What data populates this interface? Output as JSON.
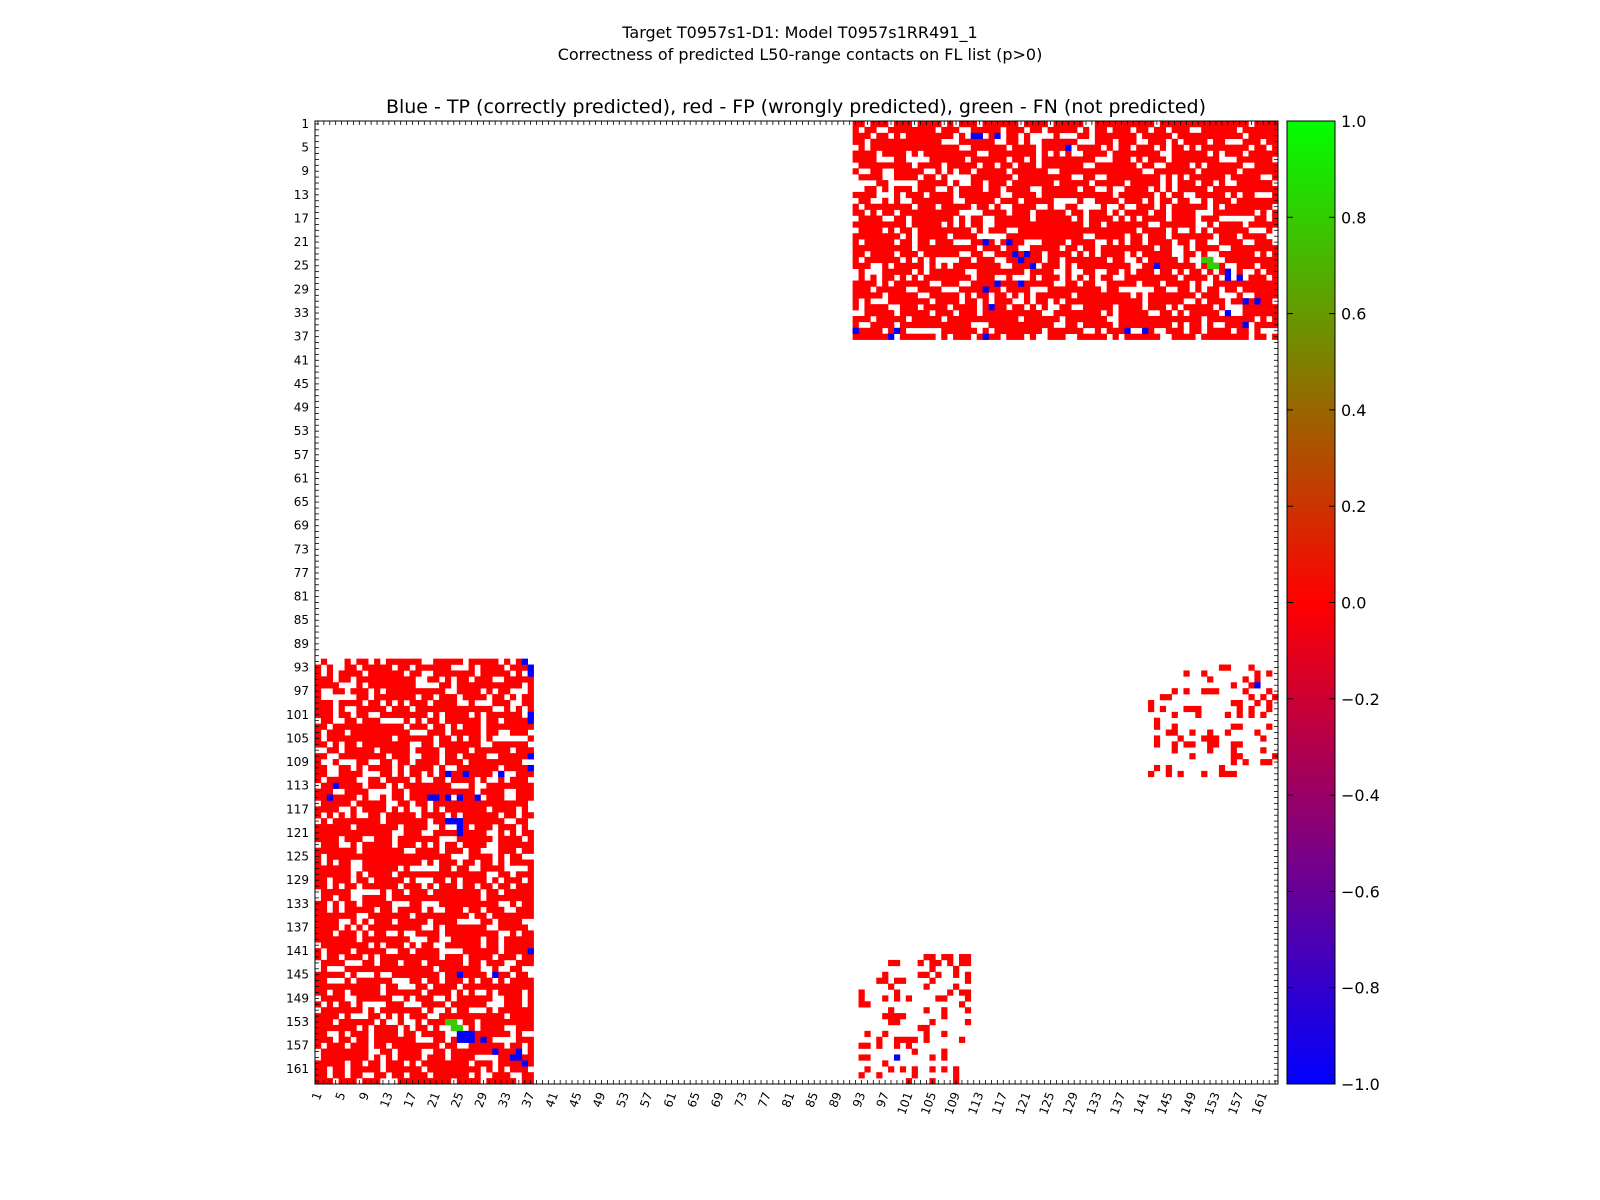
{
  "page": {
    "title_line1": "Target T0957s1-D1: Model T0957s1RR491_1",
    "title_line2": "Correctness of predicted L50-range contacts on FL list (p>0)"
  },
  "chart_data": {
    "type": "heatmap",
    "title": "Blue - TP (correctly predicted), red - FP (wrongly predicted), green - FN (not predicted)",
    "xlabel": "",
    "ylabel": "",
    "n_residues": 163,
    "xlim": [
      1,
      163
    ],
    "ylim": [
      1,
      163
    ],
    "y_axis_inverted": true,
    "tick_labels": [
      "1",
      "5",
      "9",
      "13",
      "17",
      "21",
      "25",
      "29",
      "33",
      "37",
      "41",
      "45",
      "49",
      "53",
      "57",
      "61",
      "65",
      "69",
      "73",
      "77",
      "81",
      "85",
      "89",
      "93",
      "97",
      "101",
      "105",
      "109",
      "113",
      "117",
      "121",
      "125",
      "129",
      "133",
      "137",
      "141",
      "145",
      "149",
      "153",
      "157",
      "161"
    ],
    "colorbar": {
      "min": -1.0,
      "max": 1.0,
      "tick_labels": [
        "1.0",
        "0.8",
        "0.6",
        "0.4",
        "0.2",
        "0.0",
        "−0.2",
        "−0.4",
        "−0.6",
        "−0.8",
        "−1.0"
      ],
      "colors": [
        "#0000ff",
        "#ff0000",
        "#00ff00"
      ]
    },
    "categories": [
      {
        "name": "TP (correctly predicted)",
        "value": -1.0,
        "color": "#0000ff"
      },
      {
        "name": "FP (wrongly predicted)",
        "value": 0.0,
        "color": "#ff0000"
      },
      {
        "name": "FN (not predicted)",
        "value": 0.8,
        "color": "#33cc00"
      }
    ],
    "fp_regions": [
      {
        "res_i": [
          1,
          37
        ],
        "res_j": [
          92,
          163
        ]
      },
      {
        "res_i": [
          92,
          163
        ],
        "res_j": [
          1,
          37
        ]
      },
      {
        "res_i": [
          93,
          111
        ],
        "res_j": [
          142,
          163
        ]
      },
      {
        "res_i": [
          142,
          163
        ],
        "res_j": [
          93,
          111
        ]
      }
    ],
    "tp_contacts": [
      [
        3,
        112
      ],
      [
        3,
        113
      ],
      [
        3,
        116
      ],
      [
        5,
        128
      ],
      [
        21,
        114
      ],
      [
        21,
        118
      ],
      [
        23,
        119
      ],
      [
        23,
        121
      ],
      [
        24,
        120
      ],
      [
        25,
        122
      ],
      [
        25,
        143
      ],
      [
        26,
        155
      ],
      [
        27,
        155
      ],
      [
        27,
        157
      ],
      [
        28,
        116
      ],
      [
        28,
        120
      ],
      [
        29,
        114
      ],
      [
        31,
        160
      ],
      [
        31,
        158
      ],
      [
        32,
        115
      ],
      [
        33,
        155
      ],
      [
        35,
        158
      ],
      [
        36,
        92
      ],
      [
        36,
        99
      ],
      [
        37,
        98
      ],
      [
        37,
        114
      ],
      [
        36,
        138
      ],
      [
        36,
        141
      ],
      [
        92,
        36
      ],
      [
        93,
        37
      ],
      [
        94,
        37
      ],
      [
        96,
        160
      ],
      [
        102,
        37
      ],
      [
        108,
        37
      ],
      [
        110,
        37
      ],
      [
        111,
        23
      ],
      [
        111,
        26
      ],
      [
        111,
        32
      ],
      [
        113,
        4
      ],
      [
        115,
        3
      ],
      [
        115,
        20
      ],
      [
        115,
        21
      ],
      [
        115,
        23
      ],
      [
        115,
        25
      ],
      [
        115,
        28
      ],
      [
        119,
        23
      ],
      [
        119,
        24
      ],
      [
        119,
        25
      ],
      [
        120,
        25
      ],
      [
        121,
        25
      ],
      [
        141,
        37
      ],
      [
        145,
        25
      ],
      [
        145,
        31
      ],
      [
        155,
        25
      ],
      [
        155,
        26
      ],
      [
        155,
        27
      ],
      [
        156,
        25
      ],
      [
        156,
        26
      ],
      [
        156,
        27
      ],
      [
        156,
        29
      ],
      [
        158,
        31
      ],
      [
        158,
        35
      ],
      [
        159,
        34
      ],
      [
        159,
        35
      ],
      [
        160,
        36
      ],
      [
        101,
        37
      ],
      [
        159,
        99
      ]
    ],
    "fn_contacts": [
      [
        24,
        151
      ],
      [
        24,
        152
      ],
      [
        25,
        152
      ],
      [
        25,
        153
      ],
      [
        153,
        23
      ],
      [
        153,
        24
      ],
      [
        154,
        24
      ],
      [
        154,
        25
      ]
    ]
  }
}
